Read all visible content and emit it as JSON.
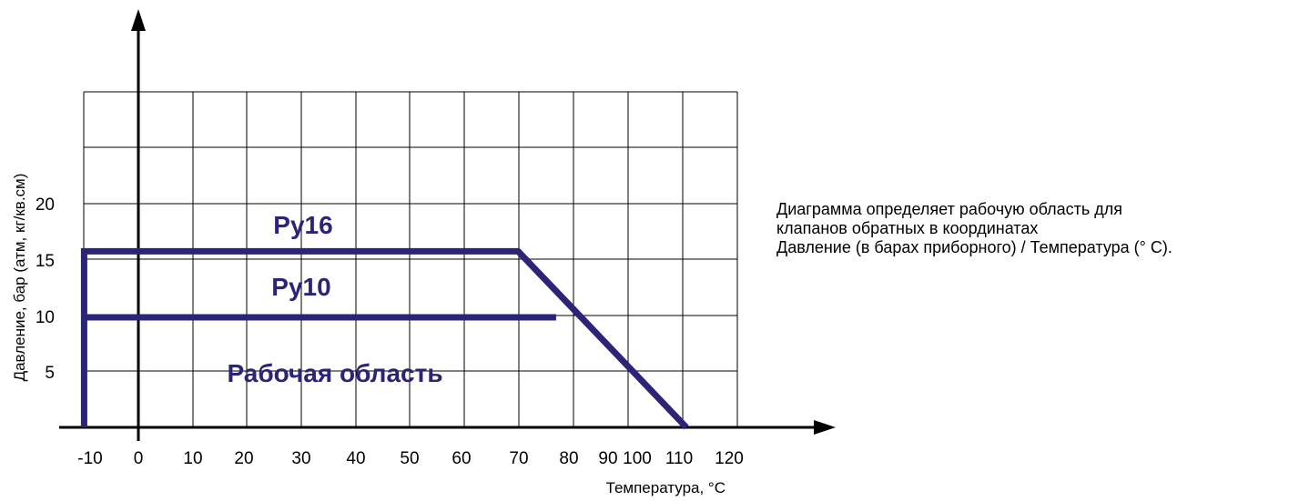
{
  "chart_data": {
    "type": "line",
    "xlabel": "Температура, °C",
    "ylabel": "Давление, бар (атм, кг/кв.см)",
    "x_ticks": [
      "-10",
      "0",
      "10",
      "20",
      "30",
      "40",
      "50",
      "60",
      "70",
      "80",
      "90",
      "100",
      "110",
      "120"
    ],
    "y_ticks": [
      "5",
      "10",
      "15",
      "20"
    ],
    "xlim": [
      -10,
      100
    ],
    "ylim": [
      0,
      30
    ],
    "grid": true,
    "series": [
      {
        "name": "Ру16",
        "points": [
          [
            -10,
            0
          ],
          [
            -10,
            16
          ],
          [
            70,
            16
          ],
          [
            101,
            0
          ]
        ]
      },
      {
        "name": "Ру10",
        "points": [
          [
            -10,
            10
          ],
          [
            77,
            10
          ]
        ]
      }
    ],
    "annotations": [
      "Рабочая область"
    ],
    "colors": {
      "series": "#2b2479",
      "grid": "#000000",
      "axis": "#000000"
    }
  },
  "description": {
    "lines": [
      "Диаграмма определяет рабочую область для",
      "клапанов обратных в координатах",
      "Давление (в барах приборного) / Температура (° C)."
    ]
  }
}
